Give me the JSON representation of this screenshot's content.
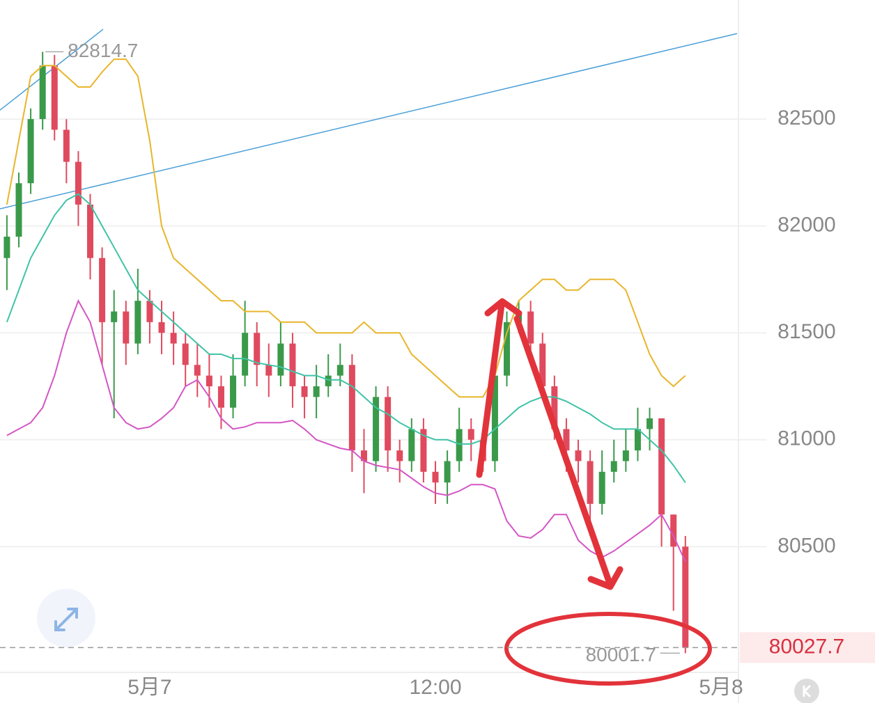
{
  "chart_data": {
    "type": "candlestick",
    "x": [
      -6,
      -5.5,
      -5,
      -4.5,
      -4,
      -3.5,
      -3,
      -2.5,
      -2,
      -1.5,
      -1,
      -0.5,
      0,
      0.5,
      1,
      1.5,
      2,
      2.5,
      3,
      3.5,
      4,
      4.5,
      5,
      5.5,
      6,
      6.5,
      7,
      7.5,
      8,
      8.5,
      9,
      9.5,
      10,
      10.5,
      11,
      11.5,
      12,
      12.5,
      13,
      13.5,
      14,
      14.5,
      15,
      15.5,
      16,
      16.5,
      17,
      17.5,
      18,
      18.5,
      19,
      19.5,
      20,
      20.5,
      21,
      21.5,
      22,
      22.5
    ],
    "open": [
      81850,
      81950,
      82200,
      82500,
      82750,
      82450,
      82300,
      82100,
      81850,
      81550,
      81600,
      81450,
      81650,
      81550,
      81500,
      81450,
      81350,
      81300,
      81250,
      81150,
      81300,
      81500,
      81350,
      81300,
      81450,
      81250,
      81200,
      81250,
      81300,
      81350,
      80950,
      80900,
      81200,
      80950,
      80900,
      81050,
      80850,
      80800,
      80900,
      81050,
      81000,
      80900,
      81300,
      81550,
      81600,
      81450,
      81250,
      81050,
      80950,
      80900,
      80700,
      80850,
      80900,
      80950,
      81050,
      81100,
      80650,
      80500
    ],
    "high": [
      82050,
      82250,
      82550,
      82814.7,
      82800,
      82500,
      82350,
      82150,
      81900,
      81700,
      81650,
      81800,
      81700,
      81650,
      81600,
      81500,
      81450,
      81400,
      81300,
      81400,
      81650,
      81550,
      81450,
      81550,
      81500,
      81300,
      81350,
      81400,
      81450,
      81400,
      81050,
      81250,
      81250,
      81000,
      81100,
      81100,
      80900,
      80950,
      81150,
      81100,
      81050,
      81350,
      81600,
      81650,
      81650,
      81500,
      81300,
      81100,
      81000,
      80950,
      80950,
      81000,
      81050,
      81150,
      81150,
      81100,
      80650,
      80550
    ],
    "low": [
      81700,
      81900,
      82150,
      82450,
      82400,
      82200,
      82000,
      81750,
      81350,
      81100,
      81350,
      81400,
      81450,
      81400,
      81350,
      81250,
      81200,
      81150,
      81050,
      81100,
      81250,
      81250,
      81200,
      81250,
      81150,
      81100,
      81100,
      81200,
      81250,
      80850,
      80750,
      80850,
      80850,
      80800,
      80850,
      80800,
      80700,
      80700,
      80850,
      80900,
      80850,
      80850,
      81250,
      81500,
      81400,
      81200,
      81000,
      80850,
      80800,
      80550,
      80650,
      80800,
      80850,
      80900,
      80950,
      80500,
      80200,
      80001.7
    ],
    "close": [
      81950,
      82200,
      82500,
      82750,
      82450,
      82300,
      82100,
      81850,
      81550,
      81600,
      81450,
      81650,
      81550,
      81500,
      81450,
      81350,
      81300,
      81250,
      81150,
      81300,
      81500,
      81350,
      81300,
      81450,
      81250,
      81200,
      81250,
      81300,
      81350,
      80950,
      80900,
      81200,
      80950,
      80900,
      81050,
      80850,
      80800,
      80900,
      81050,
      81000,
      80900,
      81300,
      81550,
      81600,
      81450,
      81250,
      81050,
      80950,
      80900,
      80700,
      80850,
      80900,
      80950,
      81050,
      81100,
      80650,
      80500,
      80027.7
    ],
    "up_color": "#3a9a4a",
    "down_color": "#e04a5e",
    "series": [
      {
        "color": "#e8b52a",
        "values": [
          82100,
          82400,
          82700,
          82750,
          82750,
          82700,
          82650,
          82650,
          82720,
          82780,
          82780,
          82700,
          82400,
          82000,
          81850,
          81800,
          81750,
          81700,
          81650,
          81650,
          81600,
          81600,
          81600,
          81550,
          81550,
          81550,
          81500,
          81500,
          81500,
          81500,
          81550,
          81500,
          81500,
          81500,
          81400,
          81350,
          81300,
          81250,
          81200,
          81200,
          81200,
          81300,
          81500,
          81650,
          81700,
          81750,
          81750,
          81700,
          81700,
          81750,
          81750,
          81750,
          81700,
          81550,
          81400,
          81300,
          81250,
          81300
        ]
      },
      {
        "color": "#3fc3a6",
        "values": [
          81550,
          81700,
          81850,
          81950,
          82050,
          82120,
          82150,
          82100,
          82000,
          81900,
          81800,
          81700,
          81650,
          81600,
          81550,
          81500,
          81450,
          81400,
          81400,
          81380,
          81380,
          81360,
          81350,
          81340,
          81320,
          81300,
          81300,
          81280,
          81280,
          81250,
          81200,
          81150,
          81120,
          81080,
          81050,
          81020,
          81000,
          81000,
          80980,
          80980,
          81000,
          81050,
          81100,
          81150,
          81180,
          81200,
          81200,
          81180,
          81150,
          81120,
          81080,
          81050,
          81050,
          81050,
          81000,
          80950,
          80880,
          80800
        ]
      },
      {
        "color": "#d456c4",
        "values": [
          81020,
          81050,
          81080,
          81150,
          81300,
          81500,
          81650,
          81550,
          81350,
          81150,
          81080,
          81050,
          81060,
          81100,
          81150,
          81250,
          81280,
          81200,
          81100,
          81050,
          81060,
          81080,
          81080,
          81080,
          81090,
          81050,
          81000,
          80980,
          80960,
          80950,
          80900,
          80880,
          80870,
          80860,
          80820,
          80780,
          80750,
          80740,
          80760,
          80790,
          80790,
          80770,
          80620,
          80550,
          80540,
          80580,
          80650,
          80650,
          80530,
          80480,
          80450,
          80480,
          80520,
          80560,
          80600,
          80650,
          80550,
          80430
        ]
      }
    ],
    "trend_lines": [
      {
        "color": "#4a9fd8",
        "x": [
          -6.29,
          -1.96
        ],
        "y": [
          82542,
          82920
        ]
      },
      {
        "color": "#4a9fd8",
        "x": [
          -6.29,
          24.67
        ],
        "y": [
          82080,
          82900
        ]
      }
    ],
    "xlim": [
      -6.29,
      24.73
    ],
    "ylim": [
      79915,
      83057
    ],
    "xticks": [
      {
        "value": 0,
        "label": "5月7"
      },
      {
        "value": 12,
        "label": "12:00"
      },
      {
        "value": 24,
        "label": "5月8"
      }
    ],
    "yticks": [
      80500,
      81000,
      81500,
      82000,
      82500
    ],
    "grid": true
  }
}
